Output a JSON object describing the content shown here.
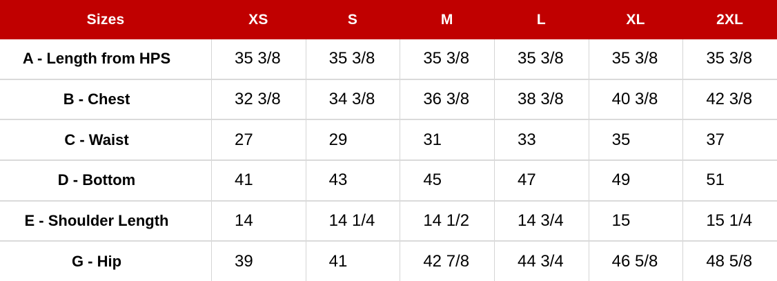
{
  "colors": {
    "header_background": "#C00000",
    "header_text": "#FFFFFF",
    "body_text": "#000000",
    "grid_line": "#D9D9D9",
    "row_background": "#FFFFFF"
  },
  "chart_data": {
    "type": "table",
    "columns": [
      "Sizes",
      "XS",
      "S",
      "M",
      "L",
      "XL",
      "2XL"
    ],
    "rows": [
      {
        "label": "A - Length from HPS",
        "values": [
          "35 3/8",
          "35 3/8",
          "35 3/8",
          "35 3/8",
          "35 3/8",
          "35 3/8"
        ]
      },
      {
        "label": "B - Chest",
        "values": [
          "32 3/8",
          "34 3/8",
          "36 3/8",
          "38 3/8",
          "40 3/8",
          "42 3/8"
        ]
      },
      {
        "label": "C - Waist",
        "values": [
          "27",
          "29",
          "31",
          "33",
          "35",
          "37"
        ]
      },
      {
        "label": "D - Bottom",
        "values": [
          "41",
          "43",
          "45",
          "47",
          "49",
          "51"
        ]
      },
      {
        "label": "E - Shoulder Length",
        "values": [
          "14",
          "14 1/4",
          "14 1/2",
          "14 3/4",
          "15",
          "15 1/4"
        ]
      },
      {
        "label": "G - Hip",
        "values": [
          "39",
          "41",
          "42 7/8",
          "44 3/4",
          "46 5/8",
          "48 5/8"
        ]
      }
    ]
  }
}
